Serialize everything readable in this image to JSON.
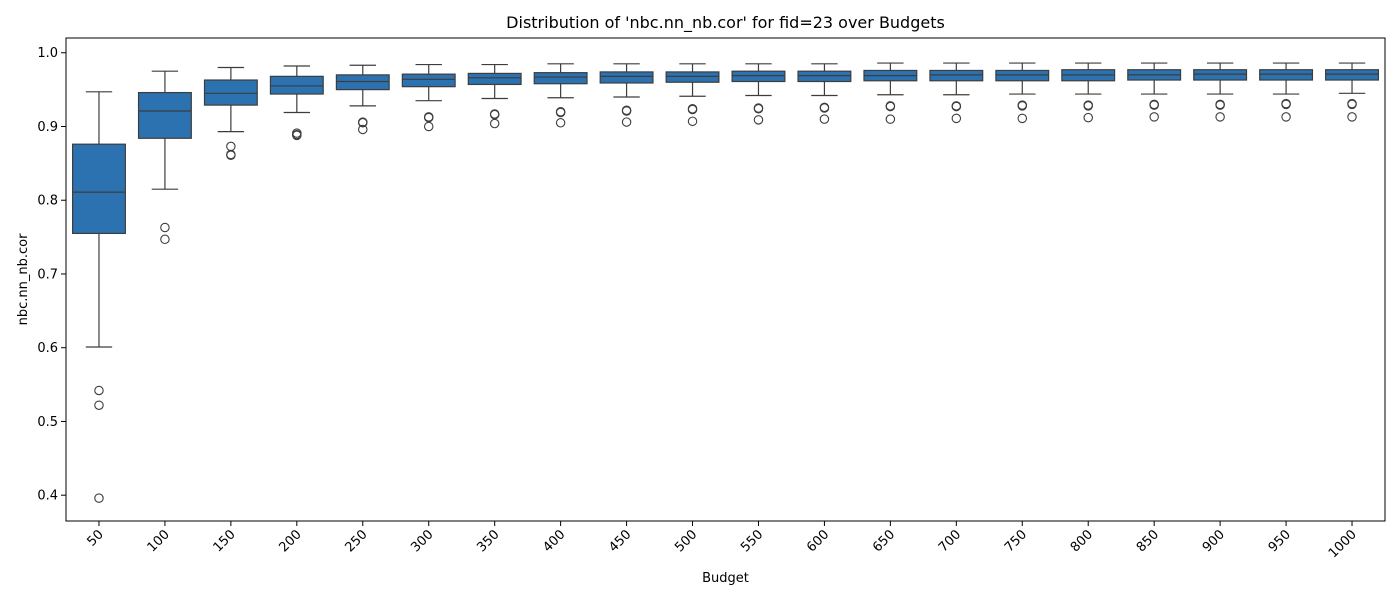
{
  "chart_data": {
    "type": "box",
    "title": "Distribution of 'nbc.nn_nb.cor' for fid=23 over Budgets",
    "xlabel": "Budget",
    "ylabel": "nbc.nn_nb.cor",
    "ylim": [
      0.365,
      1.02
    ],
    "yticks": [
      0.4,
      0.5,
      0.6,
      0.7,
      0.8,
      0.9,
      1.0
    ],
    "ytick_labels": [
      "0.4",
      "0.5",
      "0.6",
      "0.7",
      "0.8",
      "0.9",
      "1.0"
    ],
    "grid": false,
    "box_color": "#2c72b0",
    "line_color": "#3d3d3d",
    "categories": [
      "50",
      "100",
      "150",
      "200",
      "250",
      "300",
      "350",
      "400",
      "450",
      "500",
      "550",
      "600",
      "650",
      "700",
      "750",
      "800",
      "850",
      "900",
      "950",
      "1000"
    ],
    "boxes": [
      {
        "whislo": 0.601,
        "q1": 0.755,
        "med": 0.811,
        "q3": 0.876,
        "whishi": 0.947,
        "fliers": [
          0.542,
          0.522,
          0.396
        ]
      },
      {
        "whislo": 0.815,
        "q1": 0.884,
        "med": 0.921,
        "q3": 0.946,
        "whishi": 0.975,
        "fliers": [
          0.763,
          0.747
        ]
      },
      {
        "whislo": 0.893,
        "q1": 0.929,
        "med": 0.945,
        "q3": 0.963,
        "whishi": 0.98,
        "fliers": [
          0.873,
          0.862,
          0.861
        ]
      },
      {
        "whislo": 0.919,
        "q1": 0.944,
        "med": 0.955,
        "q3": 0.968,
        "whishi": 0.982,
        "fliers": [
          0.891,
          0.889,
          0.888
        ]
      },
      {
        "whislo": 0.928,
        "q1": 0.95,
        "med": 0.961,
        "q3": 0.97,
        "whishi": 0.983,
        "fliers": [
          0.906,
          0.905,
          0.896
        ]
      },
      {
        "whislo": 0.935,
        "q1": 0.954,
        "med": 0.964,
        "q3": 0.971,
        "whishi": 0.984,
        "fliers": [
          0.913,
          0.912,
          0.9
        ]
      },
      {
        "whislo": 0.938,
        "q1": 0.957,
        "med": 0.966,
        "q3": 0.972,
        "whishi": 0.984,
        "fliers": [
          0.917,
          0.916,
          0.904
        ]
      },
      {
        "whislo": 0.939,
        "q1": 0.958,
        "med": 0.967,
        "q3": 0.973,
        "whishi": 0.985,
        "fliers": [
          0.92,
          0.919,
          0.905
        ]
      },
      {
        "whislo": 0.94,
        "q1": 0.959,
        "med": 0.968,
        "q3": 0.974,
        "whishi": 0.985,
        "fliers": [
          0.922,
          0.921,
          0.906
        ]
      },
      {
        "whislo": 0.941,
        "q1": 0.96,
        "med": 0.968,
        "q3": 0.974,
        "whishi": 0.985,
        "fliers": [
          0.924,
          0.923,
          0.907
        ]
      },
      {
        "whislo": 0.942,
        "q1": 0.961,
        "med": 0.969,
        "q3": 0.975,
        "whishi": 0.985,
        "fliers": [
          0.925,
          0.924,
          0.909
        ]
      },
      {
        "whislo": 0.942,
        "q1": 0.961,
        "med": 0.969,
        "q3": 0.975,
        "whishi": 0.985,
        "fliers": [
          0.926,
          0.925,
          0.91
        ]
      },
      {
        "whislo": 0.943,
        "q1": 0.962,
        "med": 0.969,
        "q3": 0.976,
        "whishi": 0.986,
        "fliers": [
          0.928,
          0.927,
          0.91
        ]
      },
      {
        "whislo": 0.943,
        "q1": 0.962,
        "med": 0.97,
        "q3": 0.976,
        "whishi": 0.986,
        "fliers": [
          0.928,
          0.927,
          0.911
        ]
      },
      {
        "whislo": 0.944,
        "q1": 0.962,
        "med": 0.97,
        "q3": 0.976,
        "whishi": 0.986,
        "fliers": [
          0.929,
          0.928,
          0.911
        ]
      },
      {
        "whislo": 0.944,
        "q1": 0.962,
        "med": 0.97,
        "q3": 0.977,
        "whishi": 0.986,
        "fliers": [
          0.929,
          0.928,
          0.912
        ]
      },
      {
        "whislo": 0.944,
        "q1": 0.963,
        "med": 0.97,
        "q3": 0.977,
        "whishi": 0.986,
        "fliers": [
          0.93,
          0.929,
          0.913
        ]
      },
      {
        "whislo": 0.944,
        "q1": 0.963,
        "med": 0.971,
        "q3": 0.977,
        "whishi": 0.986,
        "fliers": [
          0.93,
          0.929,
          0.913
        ]
      },
      {
        "whislo": 0.944,
        "q1": 0.963,
        "med": 0.971,
        "q3": 0.977,
        "whishi": 0.986,
        "fliers": [
          0.931,
          0.93,
          0.913
        ]
      },
      {
        "whislo": 0.945,
        "q1": 0.963,
        "med": 0.971,
        "q3": 0.977,
        "whishi": 0.986,
        "fliers": [
          0.931,
          0.93,
          0.913
        ]
      }
    ]
  }
}
